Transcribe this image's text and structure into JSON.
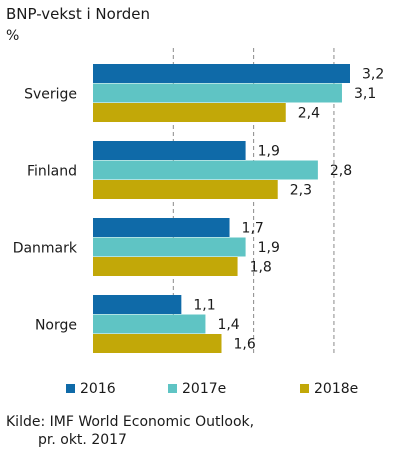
{
  "chart_data": {
    "type": "bar",
    "orientation": "horizontal",
    "title": "BNP-vekst i Norden",
    "unit": "%",
    "categories": [
      "Sverige",
      "Finland",
      "Danmark",
      "Norge"
    ],
    "series": [
      {
        "name": "2016",
        "color": "#0f6aa8",
        "values": [
          3.2,
          1.9,
          1.7,
          1.1
        ],
        "labels": [
          "3,2",
          "1,9",
          "1,7",
          "1,1"
        ]
      },
      {
        "name": "2017e",
        "color": "#5fc4c4",
        "values": [
          3.1,
          2.8,
          1.9,
          1.4
        ],
        "labels": [
          "3,1",
          "2,8",
          "1,9",
          "1,4"
        ]
      },
      {
        "name": "2018e",
        "color": "#c2a808",
        "values": [
          2.4,
          2.3,
          1.8,
          1.6
        ],
        "labels": [
          "2,4",
          "2,3",
          "1,8",
          "1,6"
        ]
      }
    ],
    "xlim": [
      0,
      3.2
    ],
    "grid": true,
    "legend_position": "bottom",
    "source": [
      "Kilde: IMF World Economic Outlook,",
      "pr. okt. 2017"
    ]
  }
}
